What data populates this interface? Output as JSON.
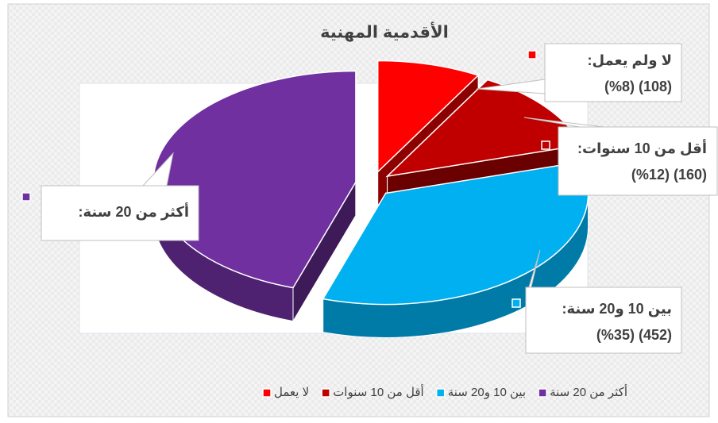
{
  "chart_data": {
    "type": "pie",
    "title": "الأقدمية المهنية",
    "categories": [
      "لا يعمل",
      "أقل من 10 سنوات",
      "بين 10 و20 سنة",
      "أكثر من 20 سنة"
    ],
    "data_labels": [
      "لا ولم يعمل:",
      "أقل من 10 سنوات:",
      "بين 10 و20 سنة:",
      "أكثر من 20 سنة:"
    ],
    "values": [
      108,
      160,
      452,
      589
    ],
    "value_labels": [
      "(108) (%8)",
      "(160) (%12)",
      "(452) (%35)",
      null
    ],
    "colors": [
      "#ff0000",
      "#c00000",
      "#00b0f0",
      "#7030a0"
    ],
    "legend": "bottom"
  }
}
